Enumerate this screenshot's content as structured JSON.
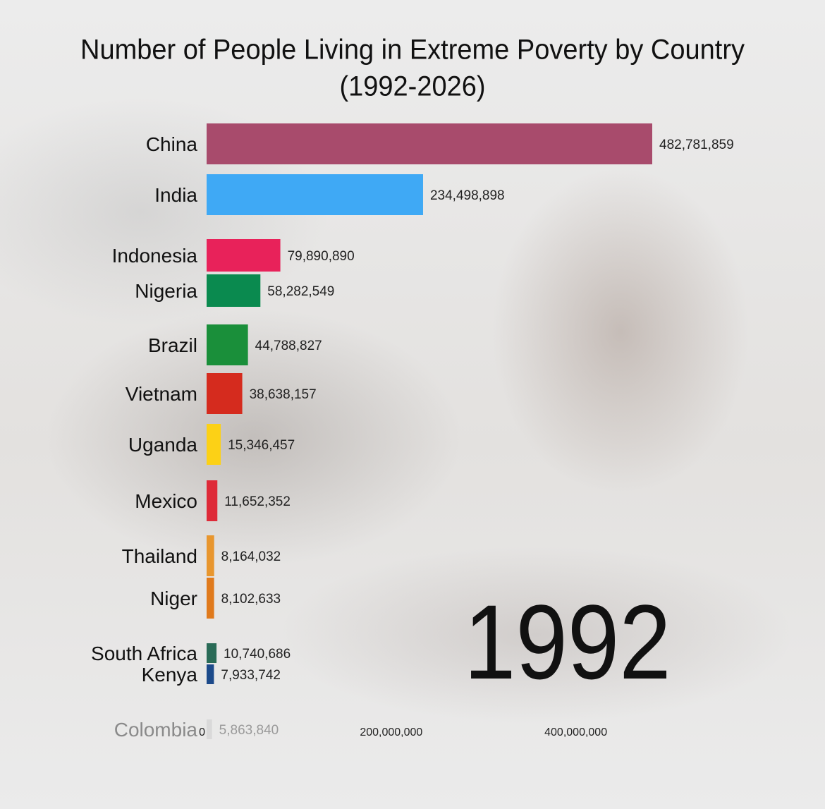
{
  "title_line1": "Number of People Living in Extreme Poverty by Country",
  "title_line2": "(1992-2026)",
  "year": "1992",
  "chart_data": {
    "type": "bar",
    "orientation": "horizontal",
    "title": "Number of People Living in Extreme Poverty by Country (1992-2026)",
    "xlabel": "",
    "ylabel": "",
    "xlim": [
      0,
      480000000
    ],
    "xticks": [
      {
        "value": 0,
        "label": "0"
      },
      {
        "value": 200000000,
        "label": "200,000,000"
      },
      {
        "value": 400000000,
        "label": "400,000,000"
      }
    ],
    "grid": false,
    "legend": "none",
    "categories": [
      "China",
      "India",
      "Indonesia",
      "Nigeria",
      "Brazil",
      "Vietnam",
      "Uganda",
      "Mexico",
      "Thailand",
      "Niger",
      "South Africa",
      "Kenya",
      "Colombia"
    ],
    "values": [
      482781859,
      234498898,
      79890890,
      58282549,
      44788827,
      38638157,
      15346457,
      11652352,
      8164032,
      8102633,
      10740686,
      7933742,
      5863840
    ],
    "value_labels": [
      "482,781,859",
      "234,498,898",
      "79,890,890",
      "58,282,549",
      "44,788,827",
      "38,638,157",
      "15,346,457",
      "11,652,352",
      "8,164,032",
      "8,102,633",
      "10,740,686",
      "7,933,742",
      "5,863,840"
    ],
    "colors": [
      "#a84b6c",
      "#3fa9f5",
      "#e8225a",
      "#0a8a4f",
      "#1a8f3a",
      "#d52b1e",
      "#fcd116",
      "#de2a38",
      "#e8962e",
      "#e07a1c",
      "#2a6b57",
      "#1c4a8a",
      "#c9c9c9"
    ]
  }
}
